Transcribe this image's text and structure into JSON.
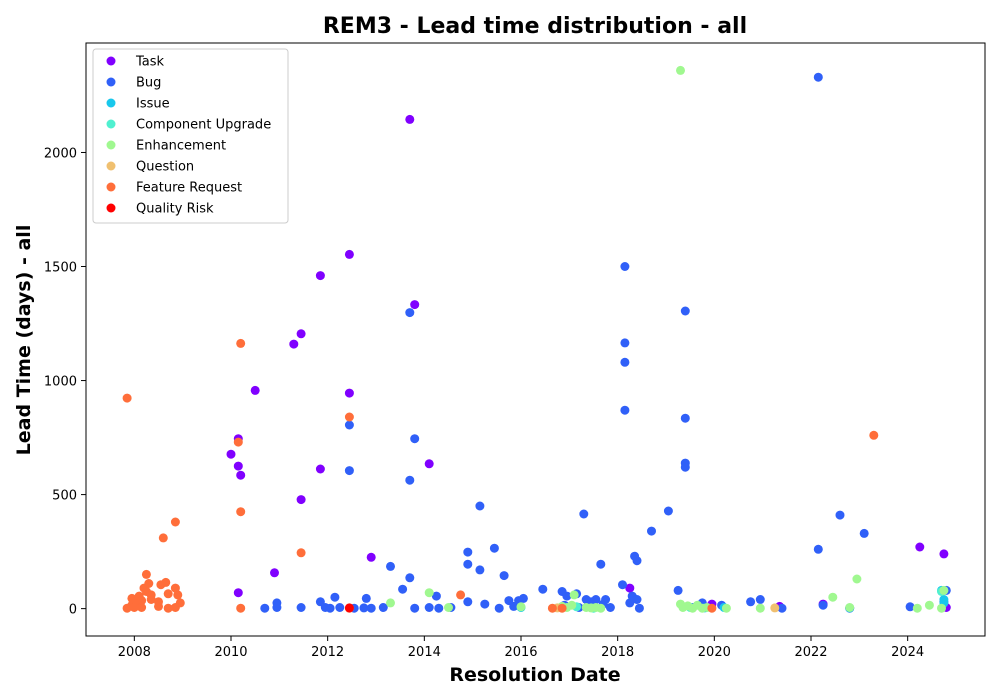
{
  "chart_data": {
    "type": "scatter",
    "title": "REM3 - Lead time distribution - all",
    "xlabel": "Resolution Date",
    "ylabel": "Lead Time (days) - all",
    "xlim": [
      2007.0,
      2025.6
    ],
    "ylim": [
      -120,
      2480
    ],
    "x_ticks": [
      {
        "value": 2008,
        "label": "2008"
      },
      {
        "value": 2010,
        "label": "2010"
      },
      {
        "value": 2012,
        "label": "2012"
      },
      {
        "value": 2014,
        "label": "2014"
      },
      {
        "value": 2016,
        "label": "2016"
      },
      {
        "value": 2018,
        "label": "2018"
      },
      {
        "value": 2020,
        "label": "2020"
      },
      {
        "value": 2022,
        "label": "2022"
      },
      {
        "value": 2024,
        "label": "2024"
      }
    ],
    "y_ticks": [
      {
        "value": 0,
        "label": "0"
      },
      {
        "value": 500,
        "label": "500"
      },
      {
        "value": 1000,
        "label": "1000"
      },
      {
        "value": 1500,
        "label": "1500"
      },
      {
        "value": 2000,
        "label": "2000"
      }
    ],
    "grid": false,
    "legend_position": "top-left",
    "series": [
      {
        "name": "Task",
        "color": "#8000ff",
        "points": [
          [
            2010.0,
            677
          ],
          [
            2010.15,
            745
          ],
          [
            2010.15,
            625
          ],
          [
            2010.2,
            585
          ],
          [
            2010.15,
            70
          ],
          [
            2010.5,
            957
          ],
          [
            2010.9,
            157
          ],
          [
            2011.3,
            1160
          ],
          [
            2011.45,
            1205
          ],
          [
            2011.45,
            478
          ],
          [
            2011.85,
            1460
          ],
          [
            2011.85,
            612
          ],
          [
            2012.45,
            1553
          ],
          [
            2012.45,
            945
          ],
          [
            2012.9,
            225
          ],
          [
            2013.7,
            2145
          ],
          [
            2013.8,
            1333
          ],
          [
            2014.1,
            635
          ],
          [
            2018.25,
            90
          ],
          [
            2019.95,
            20
          ],
          [
            2021.35,
            10
          ],
          [
            2022.25,
            20
          ],
          [
            2024.25,
            270
          ],
          [
            2024.75,
            240
          ],
          [
            2024.8,
            5
          ],
          [
            2022.8,
            3
          ]
        ]
      },
      {
        "name": "Bug",
        "color": "#3060f8",
        "points": [
          [
            2013.7,
            1298
          ],
          [
            2013.8,
            745
          ],
          [
            2013.7,
            563
          ],
          [
            2012.45,
            805
          ],
          [
            2012.45,
            605
          ],
          [
            2010.95,
            25
          ],
          [
            2010.95,
            5
          ],
          [
            2010.7,
            2
          ],
          [
            2011.45,
            5
          ],
          [
            2011.85,
            30
          ],
          [
            2011.95,
            5
          ],
          [
            2012.05,
            2
          ],
          [
            2012.15,
            50
          ],
          [
            2012.25,
            5
          ],
          [
            2012.55,
            2
          ],
          [
            2012.75,
            3
          ],
          [
            2012.8,
            45
          ],
          [
            2012.9,
            2
          ],
          [
            2013.15,
            5
          ],
          [
            2013.3,
            185
          ],
          [
            2013.55,
            85
          ],
          [
            2013.7,
            135
          ],
          [
            2013.8,
            2
          ],
          [
            2014.1,
            5
          ],
          [
            2014.25,
            55
          ],
          [
            2014.3,
            2
          ],
          [
            2014.55,
            5
          ],
          [
            2014.9,
            30
          ],
          [
            2014.9,
            248
          ],
          [
            2014.9,
            195
          ],
          [
            2015.15,
            450
          ],
          [
            2015.15,
            170
          ],
          [
            2015.25,
            20
          ],
          [
            2015.45,
            265
          ],
          [
            2015.55,
            2
          ],
          [
            2015.65,
            145
          ],
          [
            2015.75,
            35
          ],
          [
            2015.85,
            10
          ],
          [
            2015.95,
            35
          ],
          [
            2016.05,
            45
          ],
          [
            2016.45,
            85
          ],
          [
            2016.85,
            75
          ],
          [
            2016.95,
            55
          ],
          [
            2017.15,
            65
          ],
          [
            2017.3,
            415
          ],
          [
            2017.35,
            40
          ],
          [
            2017.45,
            30
          ],
          [
            2017.55,
            40
          ],
          [
            2017.65,
            195
          ],
          [
            2017.7,
            20
          ],
          [
            2017.75,
            40
          ],
          [
            2017.85,
            5
          ],
          [
            2018.1,
            105
          ],
          [
            2018.15,
            1500
          ],
          [
            2018.15,
            1165
          ],
          [
            2018.15,
            1080
          ],
          [
            2018.15,
            870
          ],
          [
            2018.25,
            25
          ],
          [
            2018.3,
            55
          ],
          [
            2018.35,
            230
          ],
          [
            2018.4,
            210
          ],
          [
            2018.4,
            40
          ],
          [
            2018.45,
            2
          ],
          [
            2018.7,
            340
          ],
          [
            2019.05,
            428
          ],
          [
            2019.25,
            80
          ],
          [
            2019.4,
            1305
          ],
          [
            2019.4,
            835
          ],
          [
            2019.4,
            638
          ],
          [
            2019.4,
            620
          ],
          [
            2019.75,
            25
          ],
          [
            2020.15,
            15
          ],
          [
            2020.75,
            30
          ],
          [
            2020.95,
            40
          ],
          [
            2021.4,
            2
          ],
          [
            2022.15,
            2330
          ],
          [
            2022.15,
            260
          ],
          [
            2022.25,
            15
          ],
          [
            2022.6,
            410
          ],
          [
            2023.1,
            330
          ],
          [
            2024.05,
            8
          ],
          [
            2024.8,
            80
          ],
          [
            2024.75,
            30
          ],
          [
            2017.2,
            5
          ],
          [
            2016.9,
            15
          ],
          [
            2019.55,
            5
          ],
          [
            2022.8,
            2
          ]
        ]
      },
      {
        "name": "Issue",
        "color": "#18c8ec",
        "points": [
          [
            2016.0,
            5
          ],
          [
            2019.8,
            3
          ],
          [
            2020.2,
            5
          ],
          [
            2022.8,
            3
          ],
          [
            2024.75,
            40
          ],
          [
            2024.75,
            25
          ],
          [
            2024.7,
            80
          ]
        ]
      },
      {
        "name": "Component Upgrade",
        "color": "#50f0d0",
        "points": [
          [
            2017.15,
            8
          ],
          [
            2017.5,
            2
          ],
          [
            2019.5,
            5
          ],
          [
            2024.7,
            75
          ]
        ]
      },
      {
        "name": "Enhancement",
        "color": "#a0f890",
        "points": [
          [
            2019.3,
            2360
          ],
          [
            2013.3,
            25
          ],
          [
            2014.1,
            70
          ],
          [
            2014.5,
            5
          ],
          [
            2016.0,
            8
          ],
          [
            2016.85,
            10
          ],
          [
            2016.95,
            5
          ],
          [
            2017.05,
            15
          ],
          [
            2017.1,
            60
          ],
          [
            2017.35,
            5
          ],
          [
            2017.45,
            3
          ],
          [
            2017.55,
            5
          ],
          [
            2017.65,
            2
          ],
          [
            2019.3,
            20
          ],
          [
            2019.35,
            5
          ],
          [
            2019.45,
            12
          ],
          [
            2019.55,
            2
          ],
          [
            2019.65,
            15
          ],
          [
            2019.75,
            2
          ],
          [
            2019.85,
            5
          ],
          [
            2020.25,
            2
          ],
          [
            2020.95,
            2
          ],
          [
            2022.45,
            50
          ],
          [
            2022.8,
            5
          ],
          [
            2022.95,
            130
          ],
          [
            2024.2,
            2
          ],
          [
            2024.45,
            15
          ],
          [
            2024.7,
            2
          ],
          [
            2024.75,
            80
          ]
        ]
      },
      {
        "name": "Question",
        "color": "#f0c070",
        "points": [
          [
            2021.25,
            3
          ],
          [
            2016.75,
            3
          ]
        ]
      },
      {
        "name": "Feature Request",
        "color": "#ff6e3a",
        "points": [
          [
            2007.85,
            923
          ],
          [
            2007.85,
            2
          ],
          [
            2007.95,
            15
          ],
          [
            2007.95,
            45
          ],
          [
            2008.0,
            30
          ],
          [
            2008.05,
            20
          ],
          [
            2008.1,
            55
          ],
          [
            2008.15,
            35
          ],
          [
            2008.2,
            90
          ],
          [
            2008.25,
            75
          ],
          [
            2008.25,
            150
          ],
          [
            2008.3,
            110
          ],
          [
            2008.35,
            60
          ],
          [
            2008.35,
            40
          ],
          [
            2008.5,
            10
          ],
          [
            2008.5,
            30
          ],
          [
            2008.55,
            105
          ],
          [
            2008.6,
            310
          ],
          [
            2008.65,
            115
          ],
          [
            2008.7,
            65
          ],
          [
            2008.7,
            2
          ],
          [
            2008.85,
            380
          ],
          [
            2008.85,
            90
          ],
          [
            2008.9,
            60
          ],
          [
            2008.95,
            25
          ],
          [
            2008.85,
            5
          ],
          [
            2010.15,
            730
          ],
          [
            2010.2,
            1163
          ],
          [
            2010.2,
            425
          ],
          [
            2010.2,
            2
          ],
          [
            2011.45,
            245
          ],
          [
            2012.45,
            840
          ],
          [
            2012.45,
            2
          ],
          [
            2014.75,
            60
          ],
          [
            2016.65,
            2
          ],
          [
            2016.85,
            2
          ],
          [
            2019.95,
            2
          ],
          [
            2023.3,
            760
          ],
          [
            2008.0,
            5
          ],
          [
            2008.15,
            5
          ]
        ]
      },
      {
        "name": "Quality Risk",
        "color": "#ff0000",
        "points": [
          [
            2012.45,
            3
          ]
        ]
      }
    ]
  }
}
